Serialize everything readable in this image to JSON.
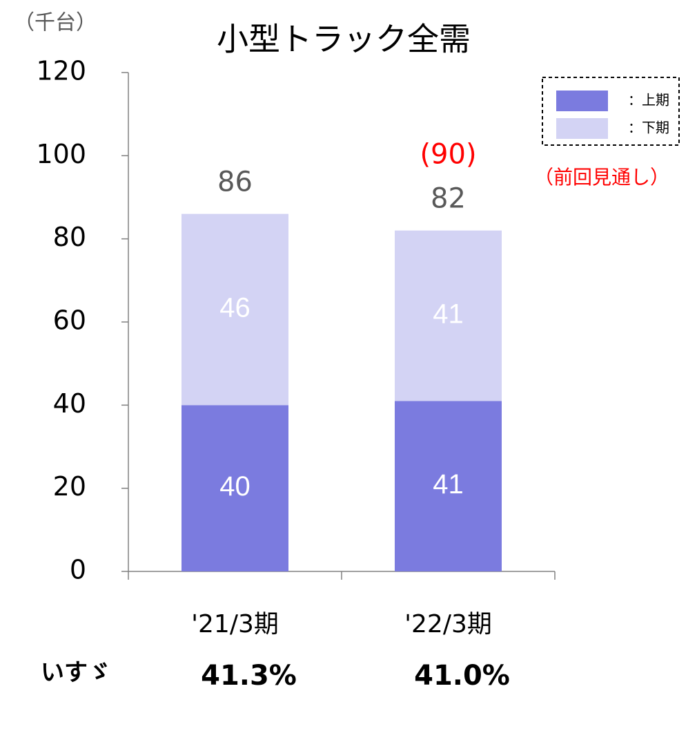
{
  "chart_data": {
    "type": "stacked_bar",
    "title": "小型トラック全需",
    "unit_label": "（千台）",
    "categories": [
      "'21/3期",
      "'22/3期"
    ],
    "series": [
      {
        "name": "：上期",
        "color": "#7b7bdf",
        "values": [
          40,
          41
        ]
      },
      {
        "name": "：下期",
        "color": "#d3d3f4",
        "values": [
          46,
          41
        ]
      }
    ],
    "totals": [
      86,
      82
    ],
    "previous_forecast": {
      "category_index": 1,
      "value": 90,
      "value_label": "(90)",
      "note": "（前回見通し）",
      "color": "#ff0000"
    },
    "share": {
      "label": "いすゞ",
      "values": [
        41.3,
        41.0
      ],
      "value_labels": [
        "41.3%",
        "41.0%"
      ]
    },
    "ylim": [
      0,
      120
    ],
    "yticks": [
      0,
      20,
      40,
      60,
      80,
      100,
      120
    ],
    "legend": "upper right"
  }
}
